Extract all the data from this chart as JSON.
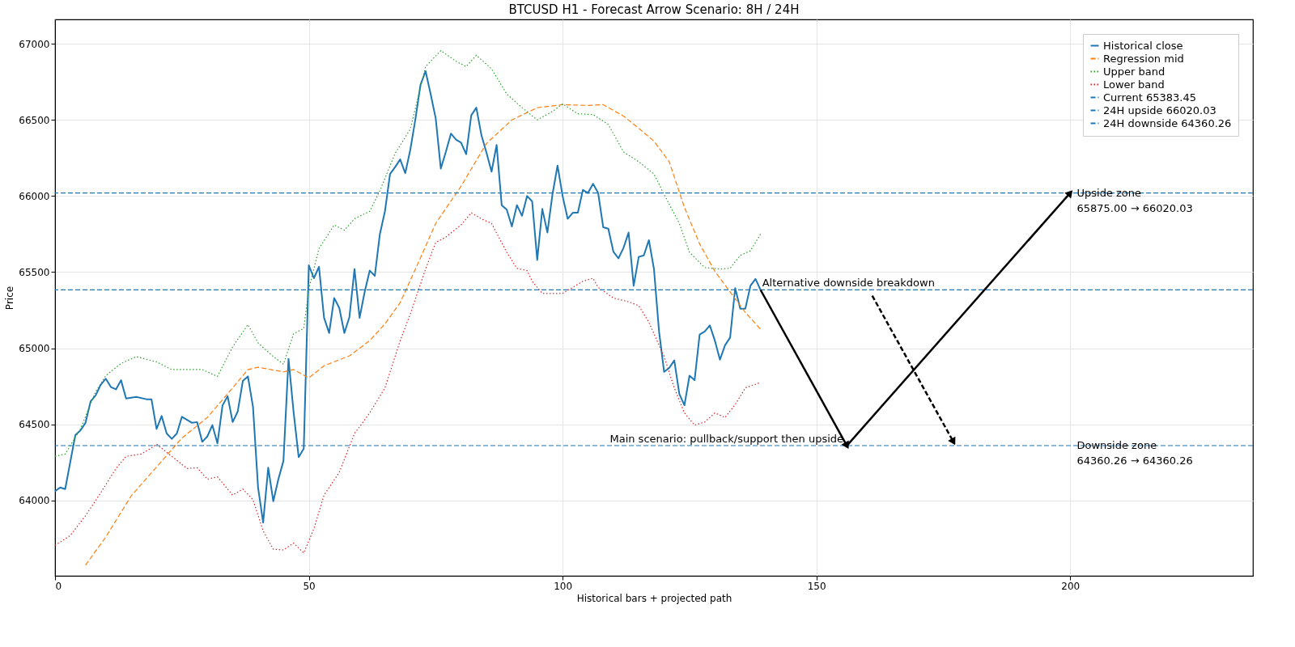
{
  "chart_data": {
    "type": "line",
    "title": "BTCUSD H1 - Forecast Arrow Scenario: 8H / 24H",
    "xlabel": "Historical bars + projected path",
    "ylabel": "Price",
    "xlim": [
      0,
      236
    ],
    "xticks": [
      0,
      50,
      100,
      150,
      200
    ],
    "ylim": [
      63505,
      67160
    ],
    "yticks": [
      64000,
      64500,
      65000,
      65500,
      66000,
      66500,
      67000
    ],
    "grid": true,
    "legend": "top right",
    "series": [
      {
        "name": "Historical close",
        "color": "#1f77b4",
        "line_style": "solid",
        "x": [
          0,
          1,
          2,
          4,
          5,
          6,
          7,
          8,
          9,
          10,
          11,
          12,
          13,
          14,
          16,
          18,
          19,
          20,
          21,
          22,
          23,
          24,
          25,
          27,
          28,
          29,
          30,
          31,
          32,
          33,
          34,
          35,
          36,
          37,
          38,
          39,
          40,
          41,
          42,
          43,
          44,
          45,
          46,
          47,
          48,
          49,
          50,
          51,
          52,
          53,
          54,
          55,
          56,
          57,
          58,
          59,
          60,
          61,
          62,
          63,
          64,
          65,
          66,
          67,
          68,
          69,
          70,
          71,
          72,
          73,
          74,
          75,
          76,
          77,
          78,
          79,
          80,
          81,
          82,
          83,
          84,
          85,
          86,
          87,
          88,
          89,
          90,
          91,
          92,
          93,
          94,
          95,
          96,
          97,
          98,
          99,
          100,
          101,
          102,
          103,
          104,
          105,
          106,
          107,
          108,
          109,
          110,
          111,
          112,
          113,
          114,
          115,
          116,
          117,
          118,
          119,
          120,
          121,
          122,
          123,
          124,
          125,
          126,
          127,
          128,
          129,
          130,
          131,
          132,
          133,
          134,
          135,
          136,
          137,
          138,
          139
        ],
        "values": [
          64060,
          64085,
          64075,
          64430,
          64460,
          64510,
          64650,
          64690,
          64760,
          64800,
          64745,
          64730,
          64790,
          64670,
          64680,
          64665,
          64665,
          64470,
          64555,
          64440,
          64405,
          64440,
          64550,
          64510,
          64515,
          64385,
          64420,
          64495,
          64375,
          64625,
          64685,
          64515,
          64585,
          64785,
          64815,
          64615,
          64085,
          63855,
          64215,
          63995,
          64140,
          64260,
          64930,
          64580,
          64285,
          64340,
          65545,
          65460,
          65535,
          65200,
          65100,
          65330,
          65265,
          65100,
          65205,
          65520,
          65200,
          65370,
          65510,
          65475,
          65750,
          65900,
          66145,
          66190,
          66240,
          66150,
          66305,
          66505,
          66730,
          66820,
          66670,
          66510,
          66180,
          66290,
          66410,
          66370,
          66350,
          66275,
          66530,
          66580,
          66400,
          66285,
          66160,
          66335,
          65940,
          65910,
          65800,
          65940,
          65870,
          66000,
          65965,
          65580,
          65915,
          65760,
          66010,
          66200,
          66000,
          65850,
          65890,
          65890,
          66040,
          66020,
          66080,
          66020,
          65795,
          65785,
          65635,
          65590,
          65660,
          65760,
          65410,
          65600,
          65610,
          65710,
          65520,
          65110,
          64845,
          64870,
          64920,
          64700,
          64625,
          64820,
          64790,
          65090,
          65110,
          65150,
          65050,
          64925,
          65020,
          65070,
          65395,
          65260,
          65260,
          65410,
          65455,
          65383
        ]
      },
      {
        "name": "Regression mid",
        "color": "#ff7f0e",
        "line_style": "dashed",
        "x": [
          6,
          10,
          15,
          20,
          25,
          30,
          35,
          38,
          40,
          45,
          47,
          50,
          53,
          58,
          62,
          65,
          68,
          71,
          75,
          80,
          85,
          90,
          95,
          100,
          105,
          108,
          112,
          115,
          118,
          121,
          124,
          127,
          130,
          133,
          136,
          139
        ],
        "values": [
          63575,
          63760,
          64030,
          64220,
          64410,
          64545,
          64740,
          64860,
          64875,
          64845,
          64860,
          64805,
          64885,
          64950,
          65050,
          65160,
          65300,
          65520,
          65820,
          66065,
          66345,
          66500,
          66580,
          66600,
          66595,
          66600,
          66525,
          66445,
          66360,
          66225,
          65925,
          65685,
          65505,
          65370,
          65235,
          65125
        ]
      },
      {
        "name": "Upper band",
        "color": "#2ca02c",
        "line_style": "dotted",
        "x": [
          0,
          2,
          5,
          8,
          10,
          13,
          16,
          20,
          23,
          26,
          29,
          32,
          35,
          38,
          40,
          43,
          45,
          47,
          49,
          50,
          52,
          55,
          57,
          59,
          62,
          64,
          67,
          70,
          73,
          76,
          79,
          81,
          83,
          86,
          89,
          92,
          95,
          98,
          100,
          103,
          106,
          109,
          112,
          115,
          118,
          120,
          123,
          125,
          128,
          131,
          133,
          135,
          137,
          139
        ],
        "values": [
          64290,
          64305,
          64470,
          64715,
          64820,
          64900,
          64945,
          64910,
          64860,
          64860,
          64860,
          64815,
          65010,
          65155,
          65035,
          64945,
          64895,
          65095,
          65130,
          65390,
          65655,
          65810,
          65775,
          65850,
          65900,
          66035,
          66280,
          66440,
          66850,
          66955,
          66885,
          66850,
          66925,
          66835,
          66670,
          66580,
          66500,
          66555,
          66605,
          66540,
          66535,
          66470,
          66290,
          66225,
          66145,
          66010,
          65820,
          65630,
          65530,
          65520,
          65525,
          65610,
          65640,
          65750
        ]
      },
      {
        "name": "Lower band",
        "color": "#d62728",
        "line_style": "dotted",
        "x": [
          0,
          3,
          6,
          9,
          12,
          14,
          17,
          19,
          20,
          23,
          26,
          28,
          30,
          32,
          35,
          37,
          39,
          41,
          43,
          45,
          47,
          49,
          51,
          53,
          56,
          59,
          62,
          65,
          68,
          70,
          73,
          75,
          77,
          80,
          82,
          84,
          86,
          89,
          91,
          93,
          94,
          96,
          98,
          100,
          102,
          104,
          106,
          107,
          110,
          113,
          115,
          117,
          120,
          122,
          124,
          126,
          128,
          130,
          132,
          134,
          136,
          139
        ],
        "values": [
          63705,
          63770,
          63900,
          64050,
          64210,
          64290,
          64305,
          64345,
          64370,
          64290,
          64210,
          64215,
          64140,
          64155,
          64035,
          64075,
          64005,
          63800,
          63680,
          63675,
          63720,
          63655,
          63815,
          64035,
          64185,
          64440,
          64575,
          64740,
          65050,
          65225,
          65520,
          65695,
          65730,
          65810,
          65890,
          65850,
          65820,
          65630,
          65525,
          65510,
          65440,
          65360,
          65360,
          65360,
          65400,
          65440,
          65460,
          65400,
          65330,
          65305,
          65280,
          65170,
          64945,
          64740,
          64575,
          64495,
          64515,
          64575,
          64545,
          64630,
          64740,
          64775
        ]
      },
      {
        "color": "#000000",
        "line_style": "solid",
        "x": [
          139,
          156
        ],
        "values": [
          65383,
          64360
        ]
      },
      {
        "color": "#000000",
        "line_style": "solid",
        "x": [
          156,
          200
        ],
        "values": [
          64360,
          66020
        ]
      },
      {
        "color": "#000000",
        "line_style": "dashed",
        "x": [
          161,
          177
        ],
        "values": [
          65345,
          64385
        ]
      }
    ],
    "ref_lines": [
      {
        "axis": "y",
        "value": 65383.45,
        "label": "Current 65383.45",
        "color": "#1f77b4",
        "line_style": "dashed"
      },
      {
        "axis": "y",
        "value": 66020.03,
        "label": "24H upside 66020.03",
        "color": "#1f77b4",
        "line_style": "dashed"
      },
      {
        "axis": "y",
        "value": 64360.26,
        "label": "24H downside 64360.26",
        "color": "#1f77b4",
        "line_style": "dashed"
      }
    ],
    "annotations": [
      {
        "text": "Alternative downside breakdown",
        "x": 139,
        "y": 65383.45
      },
      {
        "text": "Main scenario: pullback/support then upside",
        "x": 155,
        "y": 64360.26
      },
      {
        "text": "Upside zone\n65875.00 → 66020.03",
        "x": 201,
        "y": 66020.03
      },
      {
        "text": "Downside zone\n64360.26 → 64360.26",
        "x": 201,
        "y": 64360.26
      }
    ]
  }
}
